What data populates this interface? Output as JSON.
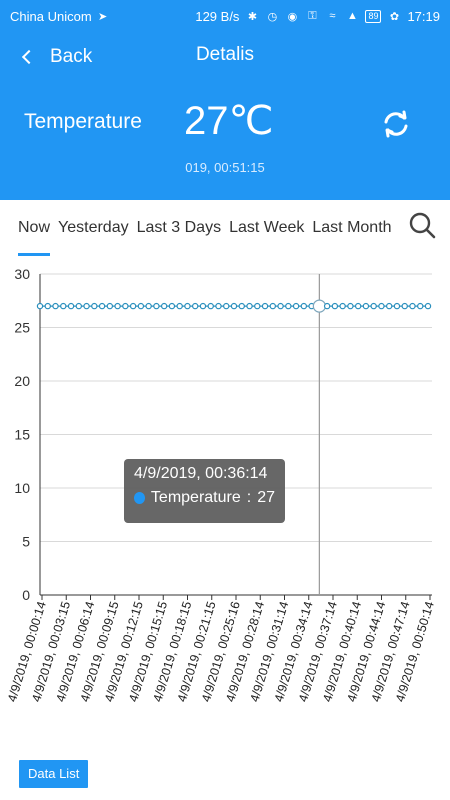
{
  "status_bar": {
    "carrier": "China Unicom",
    "speed": "129 B/s",
    "battery": "89",
    "time": "17:19"
  },
  "header": {
    "back_label": "Back",
    "title": "Detalis",
    "sensor_name": "Temperature",
    "sensor_value": "27℃",
    "timestamp": "019, 00:51:15"
  },
  "tabs": [
    {
      "label": "Now"
    },
    {
      "label": "Yesterday"
    },
    {
      "label": "Last 3 Days"
    },
    {
      "label": "Last Week"
    },
    {
      "label": "Last Month"
    }
  ],
  "tooltip": {
    "time": "4/9/2019, 00:36:14",
    "series": "Temperature",
    "value": "27"
  },
  "footer": {
    "data_list_label": "Data List"
  },
  "colors": {
    "primary": "#2196f3",
    "series": "#2a8fbd",
    "grid": "#d9d9d9"
  },
  "chart_data": {
    "type": "line",
    "title": "",
    "xlabel": "",
    "ylabel": "",
    "ylim": [
      0,
      30
    ],
    "yticks": [
      0,
      5,
      10,
      15,
      20,
      25,
      30
    ],
    "x_labels": [
      "4/9/2019, 00:00:14",
      "4/9/2019, 00:03:15",
      "4/9/2019, 00:06:14",
      "4/9/2019, 00:09:15",
      "4/9/2019, 00:12:15",
      "4/9/2019, 00:15:15",
      "4/9/2019, 00:18:15",
      "4/9/2019, 00:21:15",
      "4/9/2019, 00:25:16",
      "4/9/2019, 00:28:14",
      "4/9/2019, 00:31:14",
      "4/9/2019, 00:34:14",
      "4/9/2019, 00:37:14",
      "4/9/2019, 00:40:14",
      "4/9/2019, 00:44:14",
      "4/9/2019, 00:47:14",
      "4/9/2019, 00:50:14"
    ],
    "series": [
      {
        "name": "Temperature",
        "point_count": 51,
        "constant_value": 27,
        "highlight_index": 36
      }
    ]
  }
}
